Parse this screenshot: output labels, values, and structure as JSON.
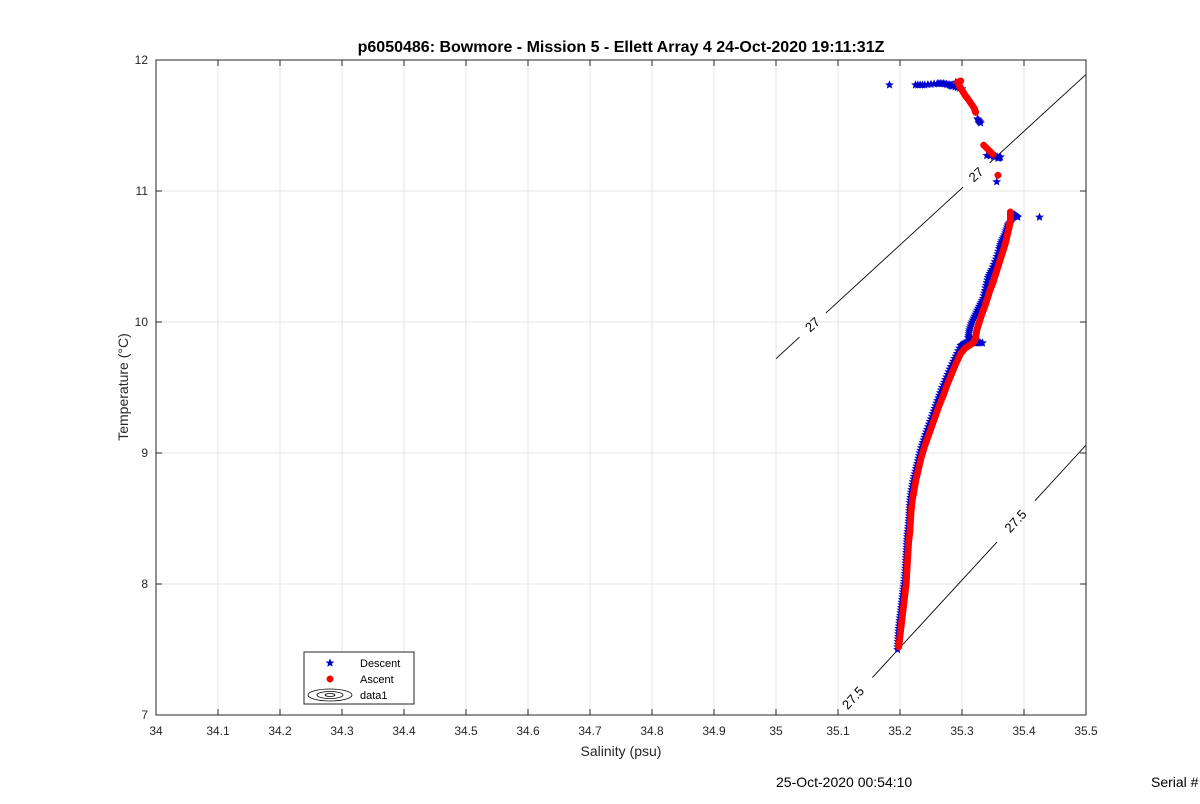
{
  "chart_data": {
    "type": "scatter",
    "title": "p6050486: Bowmore - Mission 5 - Ellett Array 4 24-Oct-2020 19:11:31Z",
    "xlabel": "Salinity (psu)",
    "ylabel": "Temperature (°C)",
    "xlim": [
      34,
      35.5
    ],
    "ylim": [
      7,
      12
    ],
    "x_ticks": [
      "34",
      "34.1",
      "34.2",
      "34.3",
      "34.4",
      "34.5",
      "34.6",
      "34.7",
      "34.8",
      "34.9",
      "35",
      "35.1",
      "35.2",
      "35.3",
      "35.4",
      "35.5"
    ],
    "y_ticks": [
      "7",
      "8",
      "9",
      "10",
      "11",
      "12"
    ],
    "grid": true,
    "legend_position": "bottom-left",
    "series": [
      {
        "name": "Descent",
        "color": "#0000cc",
        "marker": "pentagram",
        "points": [
          [
            35.196,
            7.5
          ],
          [
            35.197,
            7.58
          ],
          [
            35.198,
            7.66
          ],
          [
            35.2,
            7.74
          ],
          [
            35.202,
            7.82
          ],
          [
            35.204,
            7.9
          ],
          [
            35.206,
            7.98
          ],
          [
            35.208,
            8.06
          ],
          [
            35.209,
            8.14
          ],
          [
            35.21,
            8.22
          ],
          [
            35.211,
            8.3
          ],
          [
            35.212,
            8.38
          ],
          [
            35.214,
            8.46
          ],
          [
            35.215,
            8.54
          ],
          [
            35.216,
            8.62
          ],
          [
            35.218,
            8.7
          ],
          [
            35.221,
            8.78
          ],
          [
            35.225,
            8.86
          ],
          [
            35.229,
            8.94
          ],
          [
            35.233,
            9.02
          ],
          [
            35.238,
            9.1
          ],
          [
            35.244,
            9.18
          ],
          [
            35.25,
            9.26
          ],
          [
            35.256,
            9.34
          ],
          [
            35.262,
            9.42
          ],
          [
            35.268,
            9.5
          ],
          [
            35.275,
            9.58
          ],
          [
            35.282,
            9.66
          ],
          [
            35.29,
            9.74
          ],
          [
            35.298,
            9.82
          ],
          [
            35.305,
            9.84
          ],
          [
            35.312,
            9.85
          ],
          [
            35.322,
            9.84
          ],
          [
            35.333,
            9.84
          ],
          [
            35.31,
            9.88
          ],
          [
            35.312,
            9.94
          ],
          [
            35.316,
            10.0
          ],
          [
            35.322,
            10.06
          ],
          [
            35.328,
            10.12
          ],
          [
            35.334,
            10.18
          ],
          [
            35.338,
            10.26
          ],
          [
            35.342,
            10.34
          ],
          [
            35.348,
            10.4
          ],
          [
            35.355,
            10.48
          ],
          [
            35.36,
            10.56
          ],
          [
            35.364,
            10.62
          ],
          [
            35.37,
            10.68
          ],
          [
            35.374,
            10.74
          ],
          [
            35.38,
            10.78
          ],
          [
            35.384,
            10.82
          ],
          [
            35.39,
            10.8
          ],
          [
            35.425,
            10.8
          ],
          [
            35.356,
            11.07
          ],
          [
            35.358,
            11.25
          ],
          [
            35.362,
            11.26
          ],
          [
            35.34,
            11.27
          ],
          [
            35.33,
            11.52
          ],
          [
            35.325,
            11.55
          ],
          [
            35.3,
            11.78
          ],
          [
            35.285,
            11.8
          ],
          [
            35.28,
            11.81
          ],
          [
            35.27,
            11.82
          ],
          [
            35.26,
            11.82
          ],
          [
            35.24,
            11.81
          ],
          [
            35.225,
            11.81
          ],
          [
            35.183,
            11.81
          ],
          [
            35.29,
            11.83
          ]
        ]
      },
      {
        "name": "Ascent",
        "color": "#ff0000",
        "marker": "circle",
        "points": [
          [
            35.198,
            7.52
          ],
          [
            35.2,
            7.6
          ],
          [
            35.202,
            7.68
          ],
          [
            35.204,
            7.76
          ],
          [
            35.206,
            7.84
          ],
          [
            35.208,
            7.92
          ],
          [
            35.21,
            8.0
          ],
          [
            35.211,
            8.08
          ],
          [
            35.212,
            8.16
          ],
          [
            35.213,
            8.24
          ],
          [
            35.214,
            8.32
          ],
          [
            35.216,
            8.4
          ],
          [
            35.217,
            8.48
          ],
          [
            35.218,
            8.56
          ],
          [
            35.22,
            8.64
          ],
          [
            35.223,
            8.72
          ],
          [
            35.226,
            8.8
          ],
          [
            35.23,
            8.88
          ],
          [
            35.234,
            8.96
          ],
          [
            35.239,
            9.04
          ],
          [
            35.245,
            9.12
          ],
          [
            35.251,
            9.2
          ],
          [
            35.257,
            9.28
          ],
          [
            35.263,
            9.36
          ],
          [
            35.27,
            9.44
          ],
          [
            35.276,
            9.52
          ],
          [
            35.283,
            9.6
          ],
          [
            35.29,
            9.68
          ],
          [
            35.298,
            9.76
          ],
          [
            35.305,
            9.8
          ],
          [
            35.318,
            9.84
          ],
          [
            35.322,
            9.88
          ],
          [
            35.324,
            9.94
          ],
          [
            35.328,
            10.0
          ],
          [
            35.332,
            10.06
          ],
          [
            35.337,
            10.12
          ],
          [
            35.341,
            10.18
          ],
          [
            35.345,
            10.24
          ],
          [
            35.35,
            10.3
          ],
          [
            35.354,
            10.36
          ],
          [
            35.358,
            10.42
          ],
          [
            35.362,
            10.48
          ],
          [
            35.366,
            10.54
          ],
          [
            35.37,
            10.6
          ],
          [
            35.373,
            10.66
          ],
          [
            35.376,
            10.72
          ],
          [
            35.378,
            10.78
          ],
          [
            35.378,
            10.84
          ],
          [
            35.358,
            11.12
          ],
          [
            35.35,
            11.28
          ],
          [
            35.335,
            11.35
          ],
          [
            35.322,
            11.6
          ],
          [
            35.32,
            11.63
          ],
          [
            35.31,
            11.7
          ],
          [
            35.305,
            11.73
          ],
          [
            35.3,
            11.77
          ],
          [
            35.296,
            11.8
          ],
          [
            35.293,
            11.83
          ],
          [
            35.298,
            11.84
          ]
        ]
      }
    ],
    "contours": [
      {
        "label": "27",
        "line": [
          [
            35.0,
            9.72
          ],
          [
            35.5,
            11.89
          ]
        ],
        "label_points": [
          [
            35.055,
            10.0
          ],
          [
            35.318,
            11.15
          ]
        ]
      },
      {
        "label": "27.5",
        "line": [
          [
            35.1,
            7.0
          ],
          [
            35.5,
            9.06
          ]
        ],
        "label_points": [
          [
            35.113,
            7.18
          ],
          [
            35.375,
            8.53
          ]
        ]
      }
    ],
    "legend": {
      "entries": [
        {
          "label": "Descent",
          "series": "Descent"
        },
        {
          "label": "Ascent",
          "series": "Ascent"
        },
        {
          "label": "data1",
          "series": "contours"
        }
      ]
    }
  },
  "footer": {
    "timestamp": "25-Oct-2020 00:54:10",
    "serial": "Serial #"
  }
}
